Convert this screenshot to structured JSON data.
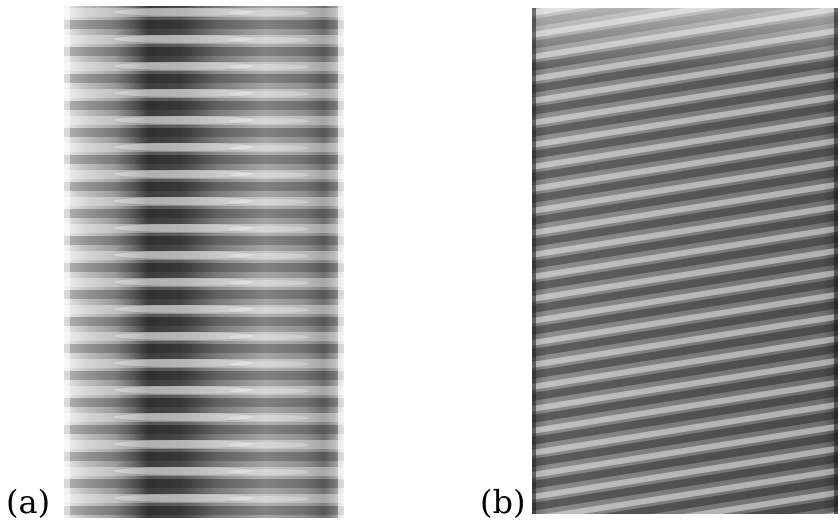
{
  "panels": [
    {
      "label": "(a)",
      "icon": "vertical-banded-column-photo"
    },
    {
      "label": "(b)",
      "icon": "tilted-banded-column-photo"
    }
  ]
}
